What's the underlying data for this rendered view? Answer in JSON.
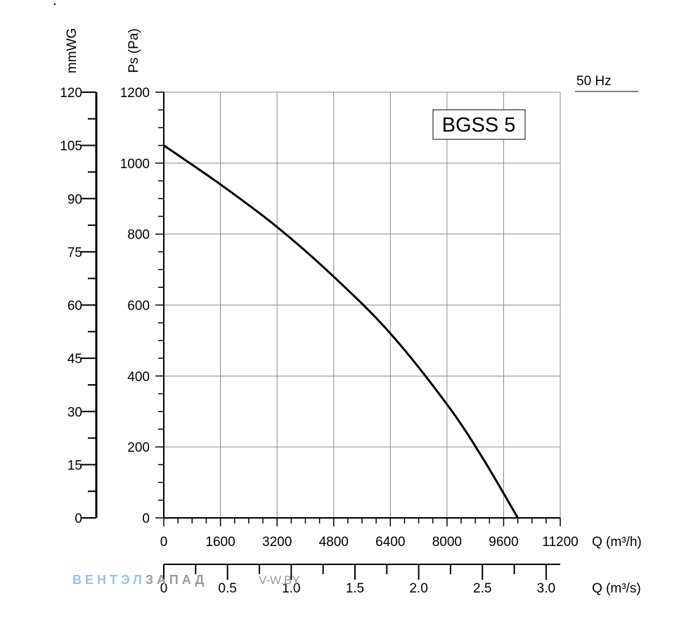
{
  "chart_data": {
    "type": "line",
    "title": "BGSS 5",
    "frequency_label": "50 Hz",
    "ylabel": "Ps (Pa)",
    "ylabel_secondary": "mmWG",
    "xlabel": "Q (m³/h)",
    "xlabel_secondary": "Q (m³/s)",
    "xlim": [
      0,
      11200
    ],
    "ylim": [
      0,
      1200
    ],
    "x_ticks": [
      "0",
      "1600",
      "3200",
      "4800",
      "6400",
      "8000",
      "9600",
      "11200"
    ],
    "y_ticks": [
      "0",
      "200",
      "400",
      "600",
      "800",
      "1000",
      "1200"
    ],
    "y2_ticks": [
      "0",
      "15",
      "30",
      "45",
      "60",
      "75",
      "90",
      "105",
      "120"
    ],
    "x2_ticks": [
      "0",
      "0.5",
      "1.0",
      "1.5",
      "2.0",
      "2.5",
      "3.0"
    ],
    "grid": true,
    "series": [
      {
        "x": [
          0,
          1600,
          3200,
          4800,
          6400,
          8000,
          9000,
          10000
        ],
        "y": [
          1050,
          940,
          820,
          680,
          520,
          320,
          170,
          0
        ]
      }
    ]
  },
  "watermark": {
    "brand_a": "ВЕНТЭЛ",
    "brand_b": "ЗАПАД",
    "site": "V-W.BY",
    "color_a": "#8fc7e6",
    "color_b": "#9a9a9a"
  }
}
